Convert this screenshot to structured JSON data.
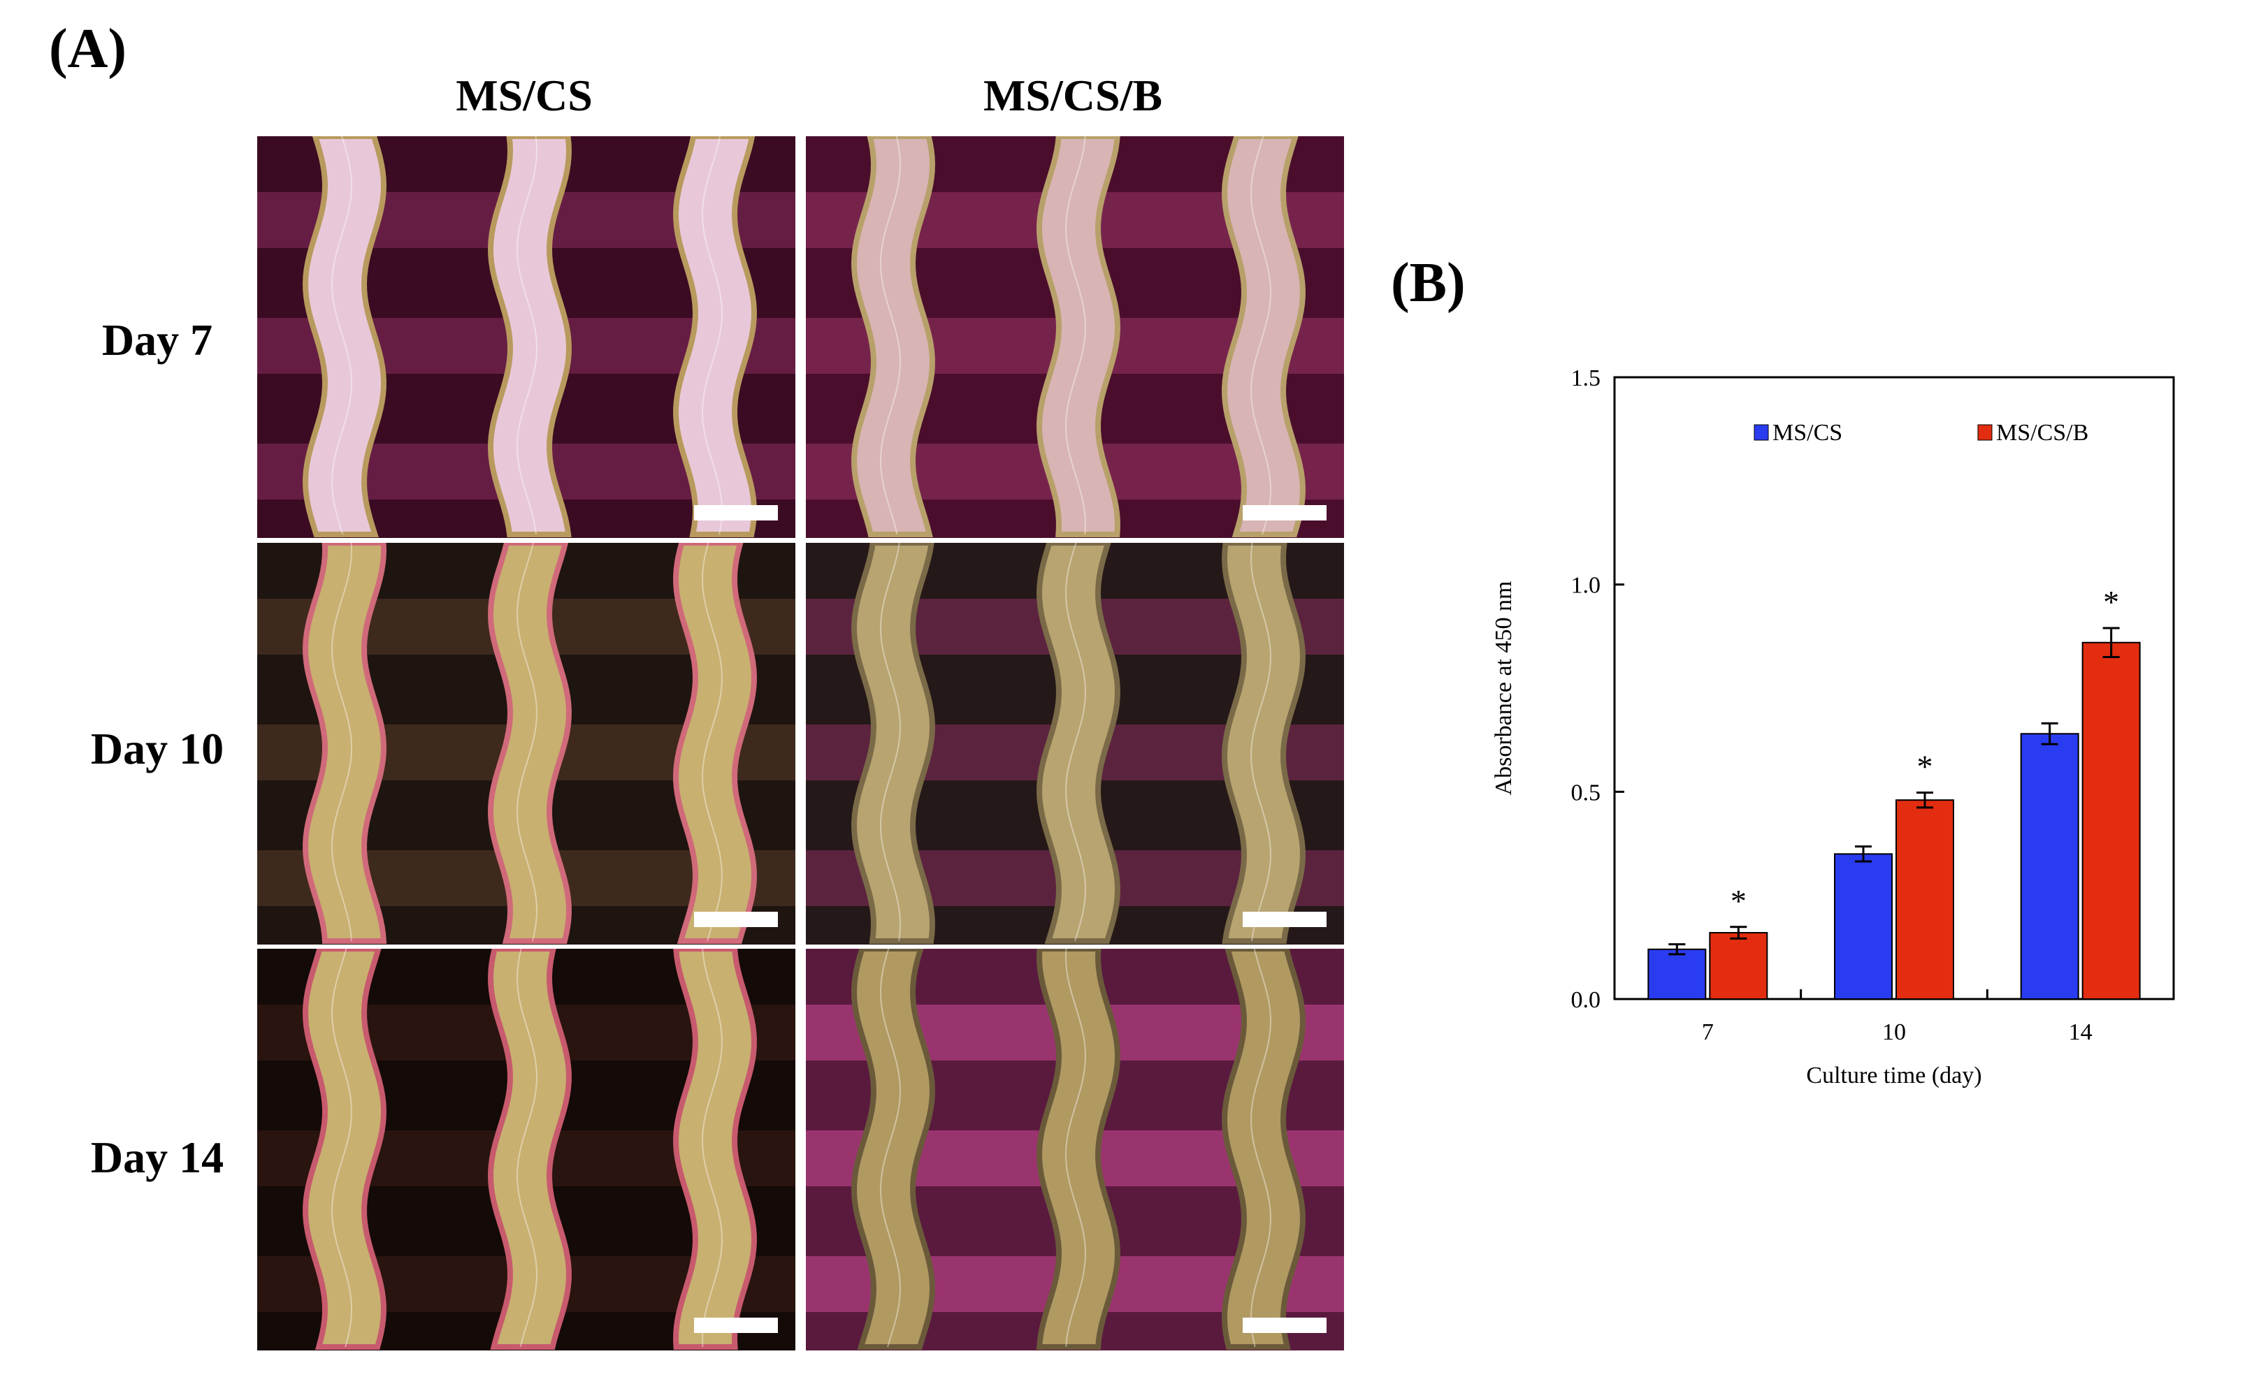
{
  "panel_a": {
    "label": "(A)",
    "columns": [
      "MS/CS",
      "MS/CS/B"
    ],
    "rows": [
      "Day 7",
      "Day 10",
      "Day 14"
    ]
  },
  "panel_b": {
    "label": "(B)"
  },
  "colors": {
    "ms_cs": "#2a3cf0",
    "ms_cs_b": "#e22d10",
    "stain_magenta": "#c0307a",
    "scaffold_gold": "#c8b878"
  },
  "chart_data": {
    "type": "bar",
    "title": "",
    "xlabel": "Culture time (day)",
    "ylabel": "Absorbance at 450 nm",
    "categories": [
      "7",
      "10",
      "14"
    ],
    "ylim": [
      0.0,
      1.5
    ],
    "yticks": [
      "0.0",
      "0.5",
      "1.0",
      "1.5"
    ],
    "series": [
      {
        "name": "MS/CS",
        "color": "#2a3cf0",
        "values": [
          0.12,
          0.35,
          0.64
        ],
        "errors": [
          0.012,
          0.018,
          0.025
        ]
      },
      {
        "name": "MS/CS/B",
        "color": "#e22d10",
        "values": [
          0.16,
          0.48,
          0.86
        ],
        "errors": [
          0.014,
          0.018,
          0.035
        ]
      }
    ],
    "annotations": [
      {
        "category": "7",
        "series": "MS/CS/B",
        "text": "*"
      },
      {
        "category": "10",
        "series": "MS/CS/B",
        "text": "*"
      },
      {
        "category": "14",
        "series": "MS/CS/B",
        "text": "*"
      }
    ],
    "legend": "top, inside plot area",
    "grid": false
  }
}
